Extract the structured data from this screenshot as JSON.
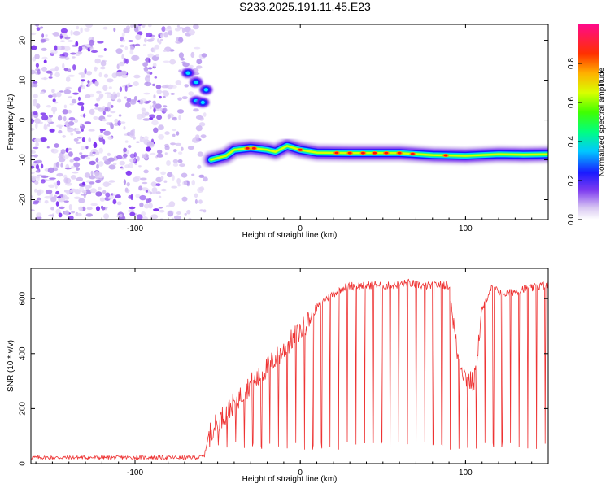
{
  "title": "S233.2025.191.11.45.E23",
  "chart_data": [
    {
      "type": "heatmap",
      "xlabel": "Height of straight line (km)",
      "ylabel": "Frequency (Hz)",
      "xlim": [
        -163,
        150
      ],
      "ylim": [
        -25,
        24
      ],
      "xticks": [
        -100,
        0,
        100
      ],
      "yticks": [
        -20,
        -10,
        0,
        10,
        20
      ],
      "noise_region_x": [
        -163,
        -55
      ],
      "line_start_x": -54,
      "frequency_trace": [
        {
          "x": -54,
          "y": -10
        },
        {
          "x": -45,
          "y": -9
        },
        {
          "x": -40,
          "y": -7.5
        },
        {
          "x": -30,
          "y": -7
        },
        {
          "x": -20,
          "y": -7.5
        },
        {
          "x": -15,
          "y": -8
        },
        {
          "x": -8,
          "y": -6.5
        },
        {
          "x": 0,
          "y": -7.5
        },
        {
          "x": 10,
          "y": -8.2
        },
        {
          "x": 30,
          "y": -8.3
        },
        {
          "x": 60,
          "y": -8.3
        },
        {
          "x": 80,
          "y": -8.8
        },
        {
          "x": 100,
          "y": -9
        },
        {
          "x": 120,
          "y": -8.6
        },
        {
          "x": 135,
          "y": -8.7
        },
        {
          "x": 150,
          "y": -8.6
        }
      ],
      "blob_cluster": [
        {
          "x": -68,
          "y": 11.8
        },
        {
          "x": -63,
          "y": 9.5
        },
        {
          "x": -57,
          "y": 7.6
        },
        {
          "x": -63,
          "y": 4.8
        },
        {
          "x": -59,
          "y": 4.4
        }
      ],
      "colorbar": {
        "label": "Normalized spectral amplitude",
        "range": [
          0,
          1
        ],
        "ticks": [
          "0.0",
          "0.2",
          "0.4",
          "0.6",
          "0.8"
        ],
        "tick_values": [
          0,
          0.2,
          0.4,
          0.6,
          0.8
        ],
        "colormap": "rainbow (white-purple → blue → cyan → green → yellow → orange → red → magenta)"
      }
    },
    {
      "type": "line",
      "xlabel": "Height of straight line (km)",
      "ylabel": "SNR (10 * v/v)",
      "xlim": [
        -163,
        150
      ],
      "ylim": [
        0,
        710
      ],
      "xticks": [
        -100,
        0,
        100
      ],
      "yticks": [
        0,
        200,
        400,
        600
      ],
      "color": "#ee3333",
      "series": [
        {
          "x": [
            -163,
            -140,
            -120,
            -100,
            -80,
            -70,
            -62,
            -58,
            -55,
            -50,
            -45,
            -40,
            -35,
            -30,
            -25,
            -20,
            -15,
            -10,
            -5,
            0,
            5,
            10,
            15,
            20,
            25,
            30,
            35,
            40,
            45,
            50,
            55,
            60,
            65,
            70,
            75,
            80,
            85,
            90,
            95,
            100,
            105,
            110,
            115,
            120,
            125,
            130,
            135,
            140,
            145,
            150
          ],
          "y": [
            22,
            22,
            22,
            22,
            22,
            22,
            22,
            30,
            120,
            160,
            190,
            230,
            260,
            300,
            320,
            360,
            390,
            420,
            460,
            490,
            530,
            570,
            600,
            620,
            640,
            650,
            650,
            650,
            655,
            650,
            650,
            655,
            660,
            655,
            650,
            650,
            655,
            650,
            410,
            320,
            300,
            560,
            640,
            630,
            620,
            630,
            640,
            640,
            650,
            650
          ]
        }
      ],
      "dropout_start": -55,
      "dropout_spacing": 5.2,
      "dropout_floor": 50
    }
  ]
}
